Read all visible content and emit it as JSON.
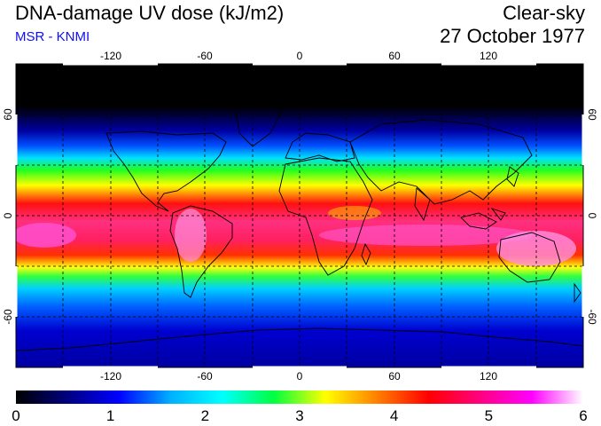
{
  "header": {
    "title": "DNA-damage UV dose (kJ/m2)",
    "subtitle": "MSR - KNMI",
    "condition": "Clear-sky",
    "date": "27 October 1977"
  },
  "map": {
    "lon_ticks": [
      "-120",
      "-60",
      "0",
      "60",
      "120"
    ],
    "lat_ticks": [
      "60",
      "0",
      "-60"
    ],
    "projection": "equirectangular",
    "grid": "dashed every 30 degrees"
  },
  "colorbar": {
    "labels": [
      "0",
      "1",
      "2",
      "3",
      "4",
      "5",
      "6"
    ],
    "min": 0,
    "max": 6,
    "stops": [
      "#000000",
      "#000080",
      "#0000ff",
      "#00b0ff",
      "#00ffff",
      "#00ff40",
      "#ffff00",
      "#ff8000",
      "#ff0000",
      "#ff0080",
      "#ff00ff",
      "#ffffff"
    ]
  },
  "palette": {
    "polar": "#000000",
    "high_lat": "#0000b0",
    "mid": "#00a0ff",
    "subtropic": "#00ff20",
    "tropic": "#ffff00",
    "equator": "#ff2000",
    "peak": "#ff40c0"
  }
}
